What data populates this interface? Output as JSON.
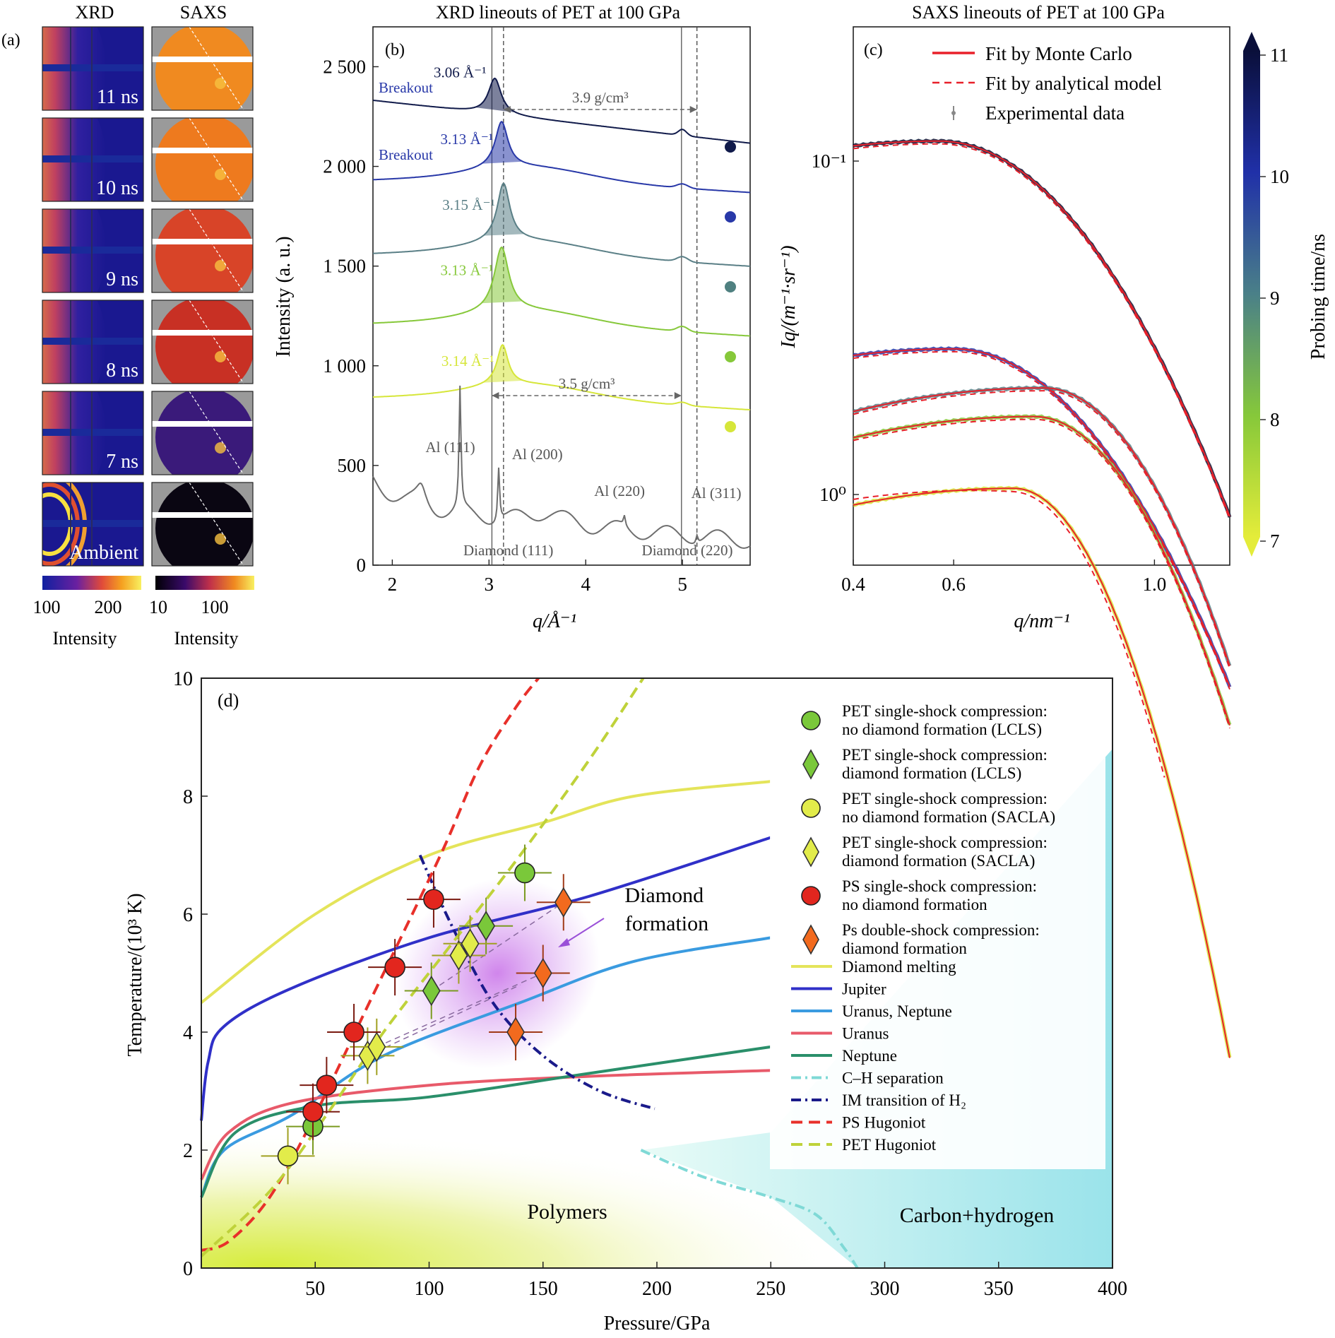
{
  "panel_a": {
    "label": "(a)",
    "col_headers": [
      "XRD",
      "SAXS"
    ],
    "rows": [
      {
        "time": "11 ns",
        "xrd_mode": "hot",
        "saxs_color": "#f08a20"
      },
      {
        "time": "10 ns",
        "xrd_mode": "hot",
        "saxs_color": "#ee7a1e"
      },
      {
        "time": "9 ns",
        "xrd_mode": "hot",
        "saxs_color": "#d84428"
      },
      {
        "time": "8 ns",
        "xrd_mode": "hot",
        "saxs_color": "#c83024"
      },
      {
        "time": "7 ns",
        "xrd_mode": "hot",
        "saxs_color": "#3a1a7a"
      },
      {
        "time": "Ambient",
        "xrd_mode": "ring",
        "saxs_color": "#0a0612"
      }
    ],
    "colorbar_xrd": {
      "ticks": [
        "100",
        "200"
      ],
      "label": "Intensity"
    },
    "colorbar_saxs": {
      "ticks": [
        "10",
        "100"
      ],
      "label": "Intensity"
    }
  },
  "panel_b": {
    "label": "(b)",
    "title": "XRD lineouts of PET at 100 GPa",
    "ylabel": "Intensity (a. u.)",
    "xlabel": "q/Å⁻¹",
    "xticks": [
      "2",
      "3",
      "4",
      "5"
    ],
    "yticks": [
      "0",
      "500",
      "1 000",
      "1 500",
      "2 000",
      "2 500"
    ],
    "peak_labels": [
      "3.06 Å⁻¹",
      "3.13 Å⁻¹",
      "3.15 Å⁻¹",
      "3.13 Å⁻¹",
      "3.14 Å⁻¹"
    ],
    "breakout_labels": [
      "Breakout",
      "Breakout"
    ],
    "density_labels": [
      "3.9 g/cm³",
      "3.5 g/cm³"
    ],
    "al_labels": [
      "Al (111)",
      "Al (200)",
      "Al (220)",
      "Al (311)"
    ],
    "diamond_labels": [
      "Diamond (111)",
      "Diamond (220)"
    ],
    "curve_colors": [
      "#101a4a",
      "#2838a8",
      "#5a7f86",
      "#86c83a",
      "#d6e63a",
      "#6e6e6e"
    ],
    "marker_colors": [
      "#101a4a",
      "#2838a8",
      "#4f8080",
      "#86c83a",
      "#d6e63a"
    ]
  },
  "panel_c": {
    "label": "(c)",
    "title": "SAXS lineouts of PET at 100 GPa",
    "ylabel": "Iq/(m⁻¹·sr⁻¹)",
    "xlabel": "q/nm⁻¹",
    "xticks": [
      "0.4",
      "0.6",
      "1.0"
    ],
    "yticks": [
      "10⁻¹",
      "10⁰"
    ],
    "legend": [
      "Fit by Monte Carlo",
      "Fit by analytical model",
      "Experimental data"
    ],
    "colorbar": {
      "label": "Probing time/ns",
      "ticks": [
        "11",
        "10",
        "9",
        "8",
        "7"
      ]
    }
  },
  "chart_data": [
    {
      "type": "line",
      "panel": "(b)",
      "title": "XRD lineouts of PET at 100 GPa",
      "xlabel": "q/Å⁻¹",
      "ylabel": "Intensity (a. u.)",
      "xlim": [
        1.8,
        5.7
      ],
      "ylim": [
        0,
        2700
      ],
      "series": [
        {
          "name": "11 ns",
          "baseline": 2320,
          "peak_q": 3.06,
          "peak_height": 180,
          "peak_width": 0.08,
          "diamond_bump": 30
        },
        {
          "name": "10 ns",
          "baseline": 1950,
          "peak_q": 3.13,
          "peak_height": 230,
          "peak_width": 0.08,
          "diamond_bump": 20
        },
        {
          "name": "9 ns",
          "baseline": 1580,
          "peak_q": 3.15,
          "peak_height": 290,
          "peak_width": 0.08,
          "diamond_bump": 25
        },
        {
          "name": "8 ns",
          "baseline": 1230,
          "peak_q": 3.13,
          "peak_height": 320,
          "peak_width": 0.09,
          "diamond_bump": 25
        },
        {
          "name": "7 ns",
          "baseline": 860,
          "peak_q": 3.14,
          "peak_height": 200,
          "peak_width": 0.07,
          "diamond_bump": 15
        },
        {
          "name": "Ambient",
          "baseline": 230,
          "al_peaks": [
            [
              2.7,
              840
            ],
            [
              3.1,
              500
            ],
            [
              4.4,
              280
            ],
            [
              5.15,
              270
            ]
          ]
        }
      ],
      "markers": [
        {
          "label": "Breakout",
          "q": 3.06
        },
        {
          "label": "Breakout",
          "q": 3.13
        }
      ],
      "reference_lines_q": [
        3.03,
        3.15,
        4.99,
        5.15
      ]
    },
    {
      "type": "line",
      "panel": "(c)",
      "title": "SAXS lineouts of PET at 100 GPa",
      "xlabel": "q/nm⁻¹",
      "ylabel": "Iq/(m⁻¹·sr⁻¹)",
      "xlim": [
        0.4,
        1.15
      ],
      "y_scale": "log",
      "series": [
        {
          "name": "11 ns",
          "y0": 0.1,
          "peak_q": 0.57,
          "decay": 0.35
        },
        {
          "name": "10 ns",
          "y0": 0.42,
          "peak_q": 0.6,
          "decay": 0.35
        },
        {
          "name": "9 ns",
          "y0": 0.55,
          "peak_q": 0.78,
          "decay": 0.25
        },
        {
          "name": "8 ns",
          "y0": 0.67,
          "peak_q": 0.76,
          "decay": 0.25
        },
        {
          "name": "7 ns",
          "y0": 1.1,
          "peak_q": 0.72,
          "decay": 0.2
        }
      ]
    },
    {
      "type": "scatter",
      "panel": "(d)",
      "xlabel": "Pressure/GPa",
      "ylabel": "Temperature/(10³ K)",
      "xlim": [
        0,
        400
      ],
      "ylim": [
        0,
        10
      ],
      "xticks": [
        50,
        100,
        150,
        200,
        250,
        300,
        350,
        400
      ],
      "yticks": [
        0,
        2,
        4,
        6,
        8,
        10
      ],
      "series": [
        {
          "name": "PET single-shock compression: no diamond formation (LCLS)",
          "marker": "circle",
          "color": "#7ac83a",
          "points": [
            [
              49,
              2.4
            ],
            [
              142,
              6.7
            ]
          ]
        },
        {
          "name": "PET single-shock compression: diamond formation (LCLS)",
          "marker": "diamond",
          "color": "#7ac83a",
          "points": [
            [
              101,
              4.7
            ],
            [
              125,
              5.8
            ]
          ]
        },
        {
          "name": "PET single-shock compression: no diamond formation (SACLA)",
          "marker": "circle",
          "color": "#e2ec4a",
          "points": [
            [
              38,
              1.9
            ]
          ]
        },
        {
          "name": "PET single-shock compression: diamond formation (SACLA)",
          "marker": "diamond",
          "color": "#e2ec4a",
          "points": [
            [
              73,
              3.6
            ],
            [
              77,
              3.75
            ],
            [
              113,
              5.3
            ],
            [
              118,
              5.5
            ]
          ]
        },
        {
          "name": "PS single-shock compression: no diamond formation",
          "marker": "circle",
          "color": "#e2261e",
          "points": [
            [
              49,
              2.65
            ],
            [
              55,
              3.1
            ],
            [
              67,
              4.0
            ],
            [
              85,
              5.1
            ],
            [
              102,
              6.25
            ]
          ]
        },
        {
          "name": "Ps double-shock compression: diamond formation",
          "marker": "diamond",
          "color": "#f26a1e",
          "points": [
            [
              138,
              4.0
            ],
            [
              150,
              5.0
            ],
            [
              159,
              6.2
            ]
          ]
        }
      ],
      "lines": [
        {
          "name": "Diamond melting",
          "color": "#e4e45a",
          "style": "solid",
          "points": [
            [
              0,
              4.5
            ],
            [
              50,
              6.0
            ],
            [
              100,
              7.0
            ],
            [
              150,
              7.55
            ],
            [
              190,
              8.0
            ],
            [
              250,
              8.25
            ]
          ]
        },
        {
          "name": "Jupiter",
          "color": "#3030c8",
          "style": "solid",
          "points": [
            [
              0,
              2.5
            ],
            [
              3,
              3.5
            ],
            [
              10,
              4.1
            ],
            [
              40,
              4.75
            ],
            [
              100,
              5.6
            ],
            [
              170,
              6.3
            ],
            [
              250,
              7.3
            ]
          ]
        },
        {
          "name": "Uranus, Neptune",
          "color": "#3a9be0",
          "style": "solid",
          "points": [
            [
              0,
              1.2
            ],
            [
              10,
              2.0
            ],
            [
              40,
              2.6
            ],
            [
              80,
              3.6
            ],
            [
              140,
              4.5
            ],
            [
              190,
              5.2
            ],
            [
              250,
              5.6
            ]
          ]
        },
        {
          "name": "Uranus",
          "color": "#e85a6a",
          "style": "solid",
          "points": [
            [
              0,
              1.5
            ],
            [
              12,
              2.3
            ],
            [
              40,
              2.8
            ],
            [
              100,
              3.1
            ],
            [
              170,
              3.25
            ],
            [
              250,
              3.35
            ]
          ]
        },
        {
          "name": "Neptune",
          "color": "#2a8f6a",
          "style": "solid",
          "points": [
            [
              0,
              1.2
            ],
            [
              15,
              2.3
            ],
            [
              50,
              2.75
            ],
            [
              100,
              2.9
            ],
            [
              170,
              3.3
            ],
            [
              250,
              3.75
            ]
          ]
        },
        {
          "name": "C–H separation",
          "color": "#7fd9d6",
          "style": "dashdot",
          "points": [
            [
              193,
              2.0
            ],
            [
              220,
              1.55
            ],
            [
              250,
              1.2
            ],
            [
              270,
              0.9
            ],
            [
              282,
              0.35
            ],
            [
              288,
              0.0
            ]
          ]
        },
        {
          "name": "IM transition of H₂",
          "color": "#1a1a8a",
          "style": "dashdot",
          "points": [
            [
              96,
              7.0
            ],
            [
              110,
              5.8
            ],
            [
              128,
              4.5
            ],
            [
              150,
              3.6
            ],
            [
              175,
              3.0
            ],
            [
              199,
              2.7
            ]
          ]
        },
        {
          "name": "PS Hugoniot",
          "color": "#e8302a",
          "style": "dashed",
          "points": [
            [
              0,
              0.3
            ],
            [
              12,
              0.45
            ],
            [
              30,
              1.2
            ],
            [
              50,
              2.6
            ],
            [
              75,
              4.6
            ],
            [
              105,
              7.0
            ],
            [
              122,
              8.5
            ],
            [
              138,
              9.5
            ],
            [
              148,
              10.0
            ]
          ]
        },
        {
          "name": "PET Hugoniot",
          "color": "#bfd23a",
          "style": "dashed",
          "points": [
            [
              0,
              0.2
            ],
            [
              30,
              1.3
            ],
            [
              55,
              2.6
            ],
            [
              80,
              4.0
            ],
            [
              110,
              5.5
            ],
            [
              140,
              7.0
            ],
            [
              170,
              8.6
            ],
            [
              194,
              10.0
            ]
          ]
        }
      ],
      "annotations": [
        "Diamond formation",
        "Polymers",
        "Carbon+hydrogen"
      ]
    }
  ],
  "panel_d": {
    "label": "(d)",
    "xlabel": "Pressure/GPa",
    "ylabel": "Temperature/(10³ K)",
    "region_labels": {
      "diamond": "Diamond formation",
      "polymers": "Polymers",
      "ch": "Carbon+hydrogen"
    }
  }
}
